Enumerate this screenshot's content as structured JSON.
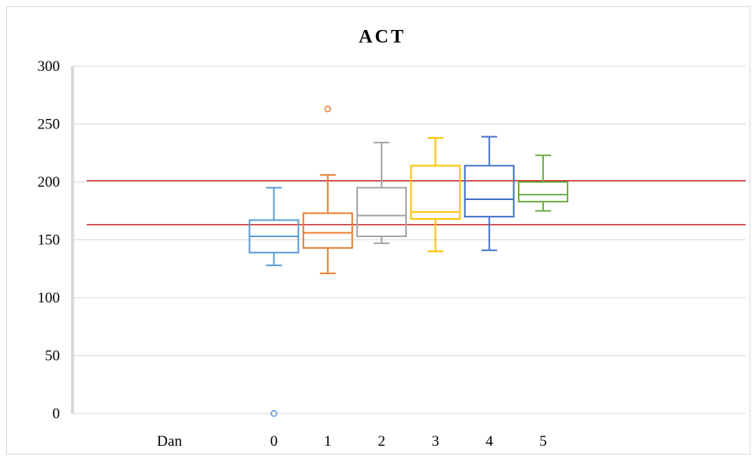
{
  "chart_data": {
    "type": "box",
    "title": "ACT",
    "xlabel": "",
    "ylabel": "",
    "category_axis_label": "Dan",
    "categories": [
      "0",
      "1",
      "2",
      "3",
      "4",
      "5"
    ],
    "ylim": [
      0,
      300
    ],
    "yticks": [
      0,
      50,
      100,
      150,
      200,
      250,
      300
    ],
    "grid": true,
    "legend": "none",
    "series": [
      {
        "category": "0",
        "color": "#5b9bd5",
        "min": 128,
        "q1": 139,
        "median": 153,
        "q3": 167,
        "max": 195,
        "outliers": [
          0
        ]
      },
      {
        "category": "1",
        "color": "#ed7d31",
        "min": 121,
        "q1": 143,
        "median": 156,
        "q3": 173,
        "max": 206,
        "outliers": [
          263
        ]
      },
      {
        "category": "2",
        "color": "#a5a5a5",
        "min": 147,
        "q1": 153,
        "median": 171,
        "q3": 195,
        "max": 234,
        "outliers": []
      },
      {
        "category": "3",
        "color": "#ffc000",
        "min": 140,
        "q1": 168,
        "median": 174,
        "q3": 214,
        "max": 238,
        "outliers": []
      },
      {
        "category": "4",
        "color": "#4472c4",
        "min": 141,
        "q1": 170,
        "median": 185,
        "q3": 214,
        "max": 239,
        "outliers": []
      },
      {
        "category": "5",
        "color": "#70ad47",
        "min": 175,
        "q1": 183,
        "median": 189,
        "q3": 200,
        "max": 223,
        "outliers": []
      }
    ],
    "reference_lines": [
      {
        "value": 201,
        "color": "#c00000"
      },
      {
        "value": 163,
        "color": "#c00000"
      }
    ]
  }
}
